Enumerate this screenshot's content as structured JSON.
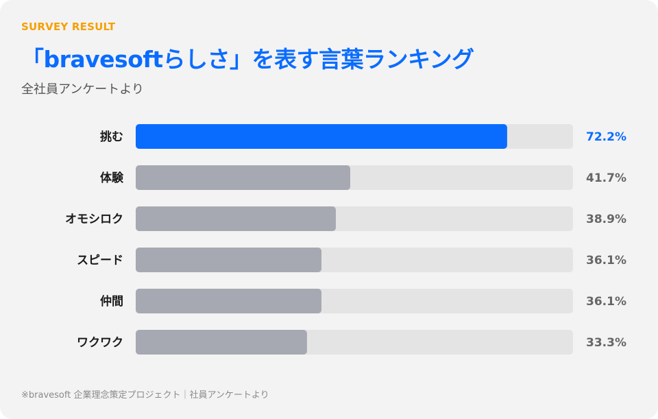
{
  "header": {
    "eyebrow": "SURVEY RESULT",
    "title": "「bravesoftらしさ」を表す言葉ランキング",
    "subtitle": "全社員アンケートより"
  },
  "footer": {
    "source": "※bravesoft 企業理念策定プロジェクト｜社員アンケートより"
  },
  "colors": {
    "highlight": "#0a6cff",
    "bar": "#a6a9b1",
    "track": "#e4e4e4",
    "label": "#1a1a1a",
    "value": "#666666",
    "accent_eyebrow": "#f5a000"
  },
  "chart_data": {
    "type": "bar",
    "orientation": "horizontal",
    "categories": [
      "挑む",
      "体験",
      "オモシロク",
      "スピード",
      "仲間",
      "ワクワク"
    ],
    "values": [
      72.2,
      41.7,
      38.9,
      36.1,
      36.1,
      33.3
    ],
    "value_labels": [
      "72.2%",
      "41.7%",
      "38.9%",
      "36.1%",
      "36.1%",
      "33.3%"
    ],
    "unit": "%",
    "xlim": [
      0,
      85
    ],
    "highlight_index": 0,
    "grid": false,
    "legend": "none"
  }
}
